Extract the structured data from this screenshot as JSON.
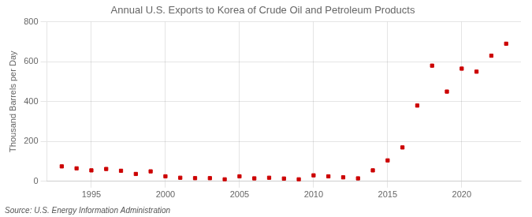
{
  "chart_data": {
    "type": "scatter",
    "title": "Annual U.S. Exports to Korea of Crude Oil and Petroleum Products",
    "ylabel": "Thousand Barrels per Day",
    "source": "Source: U.S. Energy Information Administration",
    "x": [
      1993,
      1994,
      1995,
      1996,
      1997,
      1998,
      1999,
      2000,
      2001,
      2002,
      2003,
      2004,
      2005,
      2006,
      2007,
      2008,
      2009,
      2010,
      2011,
      2012,
      2013,
      2014,
      2015,
      2016,
      2017,
      2018,
      2019,
      2020,
      2021,
      2022,
      2023
    ],
    "values": [
      75,
      65,
      55,
      62,
      53,
      37,
      50,
      25,
      18,
      16,
      16,
      10,
      25,
      15,
      18,
      14,
      10,
      30,
      25,
      20,
      15,
      55,
      105,
      170,
      380,
      580,
      450,
      565,
      550,
      630,
      690
    ],
    "color": "#cc0000",
    "marker": "square",
    "xlim": [
      1992,
      2024
    ],
    "xticks": [
      1995,
      2000,
      2005,
      2010,
      2015,
      2020
    ],
    "ylim": [
      0,
      800
    ],
    "yticks": [
      0,
      200,
      400,
      600,
      800
    ],
    "grid": true
  }
}
